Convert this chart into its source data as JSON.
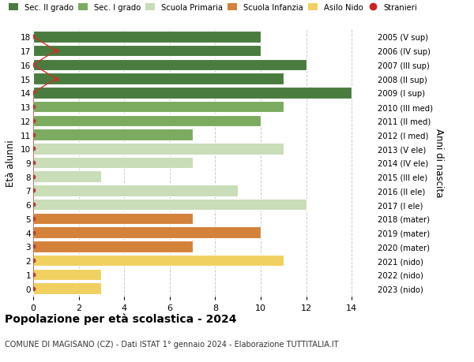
{
  "ages": [
    18,
    17,
    16,
    15,
    14,
    13,
    12,
    11,
    10,
    9,
    8,
    7,
    6,
    5,
    4,
    3,
    2,
    1,
    0
  ],
  "right_labels": [
    "2005 (V sup)",
    "2006 (IV sup)",
    "2007 (III sup)",
    "2008 (II sup)",
    "2009 (I sup)",
    "2010 (III med)",
    "2011 (II med)",
    "2012 (I med)",
    "2013 (V ele)",
    "2014 (IV ele)",
    "2015 (III ele)",
    "2016 (II ele)",
    "2017 (I ele)",
    "2018 (mater)",
    "2019 (mater)",
    "2020 (mater)",
    "2021 (nido)",
    "2022 (nido)",
    "2023 (nido)"
  ],
  "values": [
    10,
    10,
    12,
    11,
    14,
    11,
    10,
    7,
    11,
    7,
    3,
    9,
    12,
    7,
    10,
    7,
    11,
    3,
    3
  ],
  "bar_colors": [
    "#4a7c3f",
    "#4a7c3f",
    "#4a7c3f",
    "#4a7c3f",
    "#4a7c3f",
    "#7aab5e",
    "#7aab5e",
    "#7aab5e",
    "#c8ddb8",
    "#c8ddb8",
    "#c8ddb8",
    "#c8ddb8",
    "#c8ddb8",
    "#d4823a",
    "#d4823a",
    "#d4823a",
    "#f0d060",
    "#f0d060",
    "#f0d060"
  ],
  "legend_colors": {
    "Sec. II grado": "#4a7c3f",
    "Sec. I grado": "#7aab5e",
    "Scuola Primaria": "#c8ddb8",
    "Scuola Infanzia": "#d4823a",
    "Asilo Nido": "#f0d060",
    "Stranieri": "#cc2222"
  },
  "stranieri_x": [
    0,
    1,
    0,
    1,
    0,
    0,
    0,
    0,
    0,
    0,
    0,
    0,
    0,
    0,
    0,
    0,
    0,
    0,
    0
  ],
  "title": "Popolazione per età scolastica - 2024",
  "subtitle": "COMUNE DI MAGISANO (CZ) - Dati ISTAT 1° gennaio 2024 - Elaborazione TUTTITALIA.IT",
  "ylabel_label": "Età alunni",
  "right_ylabel": "Anni di nascita",
  "xlim": [
    0,
    15
  ],
  "bar_height": 0.82,
  "background_color": "#ffffff",
  "grid_color": "#cccccc",
  "stranieri_line_color": "#c0392b"
}
